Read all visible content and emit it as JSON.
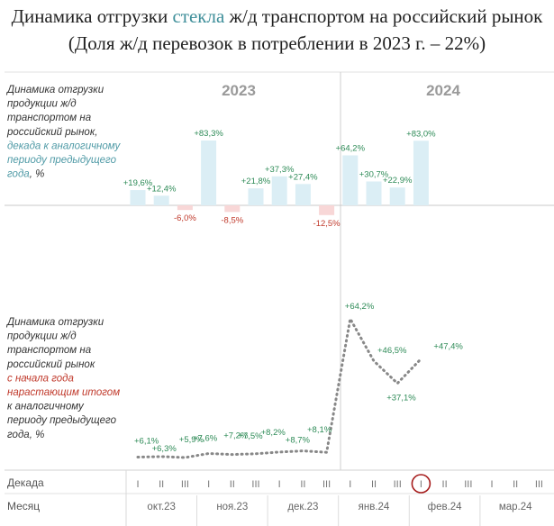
{
  "title_part1": "Динамика отгрузки ",
  "title_highlight": "стекла",
  "title_part2": " ж/д транспортом на российский рынок",
  "subtitle": "(Доля ж/д перевозок в потреблении в 2023 г. – 22%)",
  "colors": {
    "positive_bar": "#dbeef5",
    "negative_bar": "#f8d7d7",
    "positive_label": "#2e8b57",
    "negative_label": "#c0392b",
    "line": "#888888",
    "highlight_circle": "#a61c1c",
    "teal_text": "#4f9aa6"
  },
  "chart_data": [
    {
      "type": "bar",
      "label_lines": [
        {
          "text": "Динамика отгрузки",
          "style": "normal"
        },
        {
          "text": "продукции ж/д",
          "style": "normal"
        },
        {
          "text": "транспортом на",
          "style": "normal"
        },
        {
          "text": "российский рынок,",
          "style": "normal"
        },
        {
          "text": "декада к аналогичному",
          "style": "teal"
        },
        {
          "text": "периоду предыдущего",
          "style": "teal"
        },
        {
          "text": "года",
          "style": "teal",
          "suffix": ", %"
        }
      ],
      "year_labels": [
        "2023",
        "2024"
      ],
      "values": [
        19.6,
        12.4,
        -6.0,
        83.3,
        -8.5,
        21.8,
        37.3,
        27.4,
        -12.5,
        64.2,
        30.7,
        22.9,
        83.0
      ],
      "value_labels": [
        "+19,6%",
        "+12,4%",
        "-6,0%",
        "+83,3%",
        "-8,5%",
        "+21,8%",
        "+37,3%",
        "+27,4%",
        "-12,5%",
        "+64,2%",
        "+30,7%",
        "+22,9%",
        "+83,0%"
      ]
    },
    {
      "type": "line",
      "label_lines": [
        {
          "text": "Динамика отгрузки",
          "style": "normal"
        },
        {
          "text": "продукции ж/д",
          "style": "normal"
        },
        {
          "text": "транспортом на",
          "style": "normal"
        },
        {
          "text": "российский рынок",
          "style": "normal"
        },
        {
          "text": "с начала года",
          "style": "red"
        },
        {
          "text": "нарастающим итогом",
          "style": "red"
        },
        {
          "text": "к аналогичному",
          "style": "normal"
        },
        {
          "text": "периоду предыдущего",
          "style": "normal"
        },
        {
          "text": "года, %",
          "style": "normal"
        }
      ],
      "values": [
        6.1,
        6.3,
        5.9,
        7.6,
        7.2,
        7.5,
        8.2,
        8.7,
        8.1,
        64.2,
        46.5,
        37.1,
        47.4
      ],
      "value_labels": [
        "+6,1%",
        "+6,3%",
        "+5,9%",
        "+7,6%",
        "+7,2%",
        "+7,5%",
        "+8,2%",
        "+8,7%",
        "+8,1%",
        "+64,2%",
        "+46,5%",
        "+37,1%",
        "+47,4%"
      ]
    }
  ],
  "axis": {
    "decade_label": "Декада",
    "month_label": "Месяц",
    "decade_ticks": [
      "I",
      "II",
      "III",
      "I",
      "II",
      "III",
      "I",
      "II",
      "III",
      "I",
      "II",
      "III",
      "I",
      "II",
      "III",
      "I",
      "II",
      "III"
    ],
    "highlighted_decade_index": 12,
    "months": [
      "окт.23",
      "ноя.23",
      "дек.23",
      "янв.24",
      "фев.24",
      "мар.24"
    ]
  }
}
